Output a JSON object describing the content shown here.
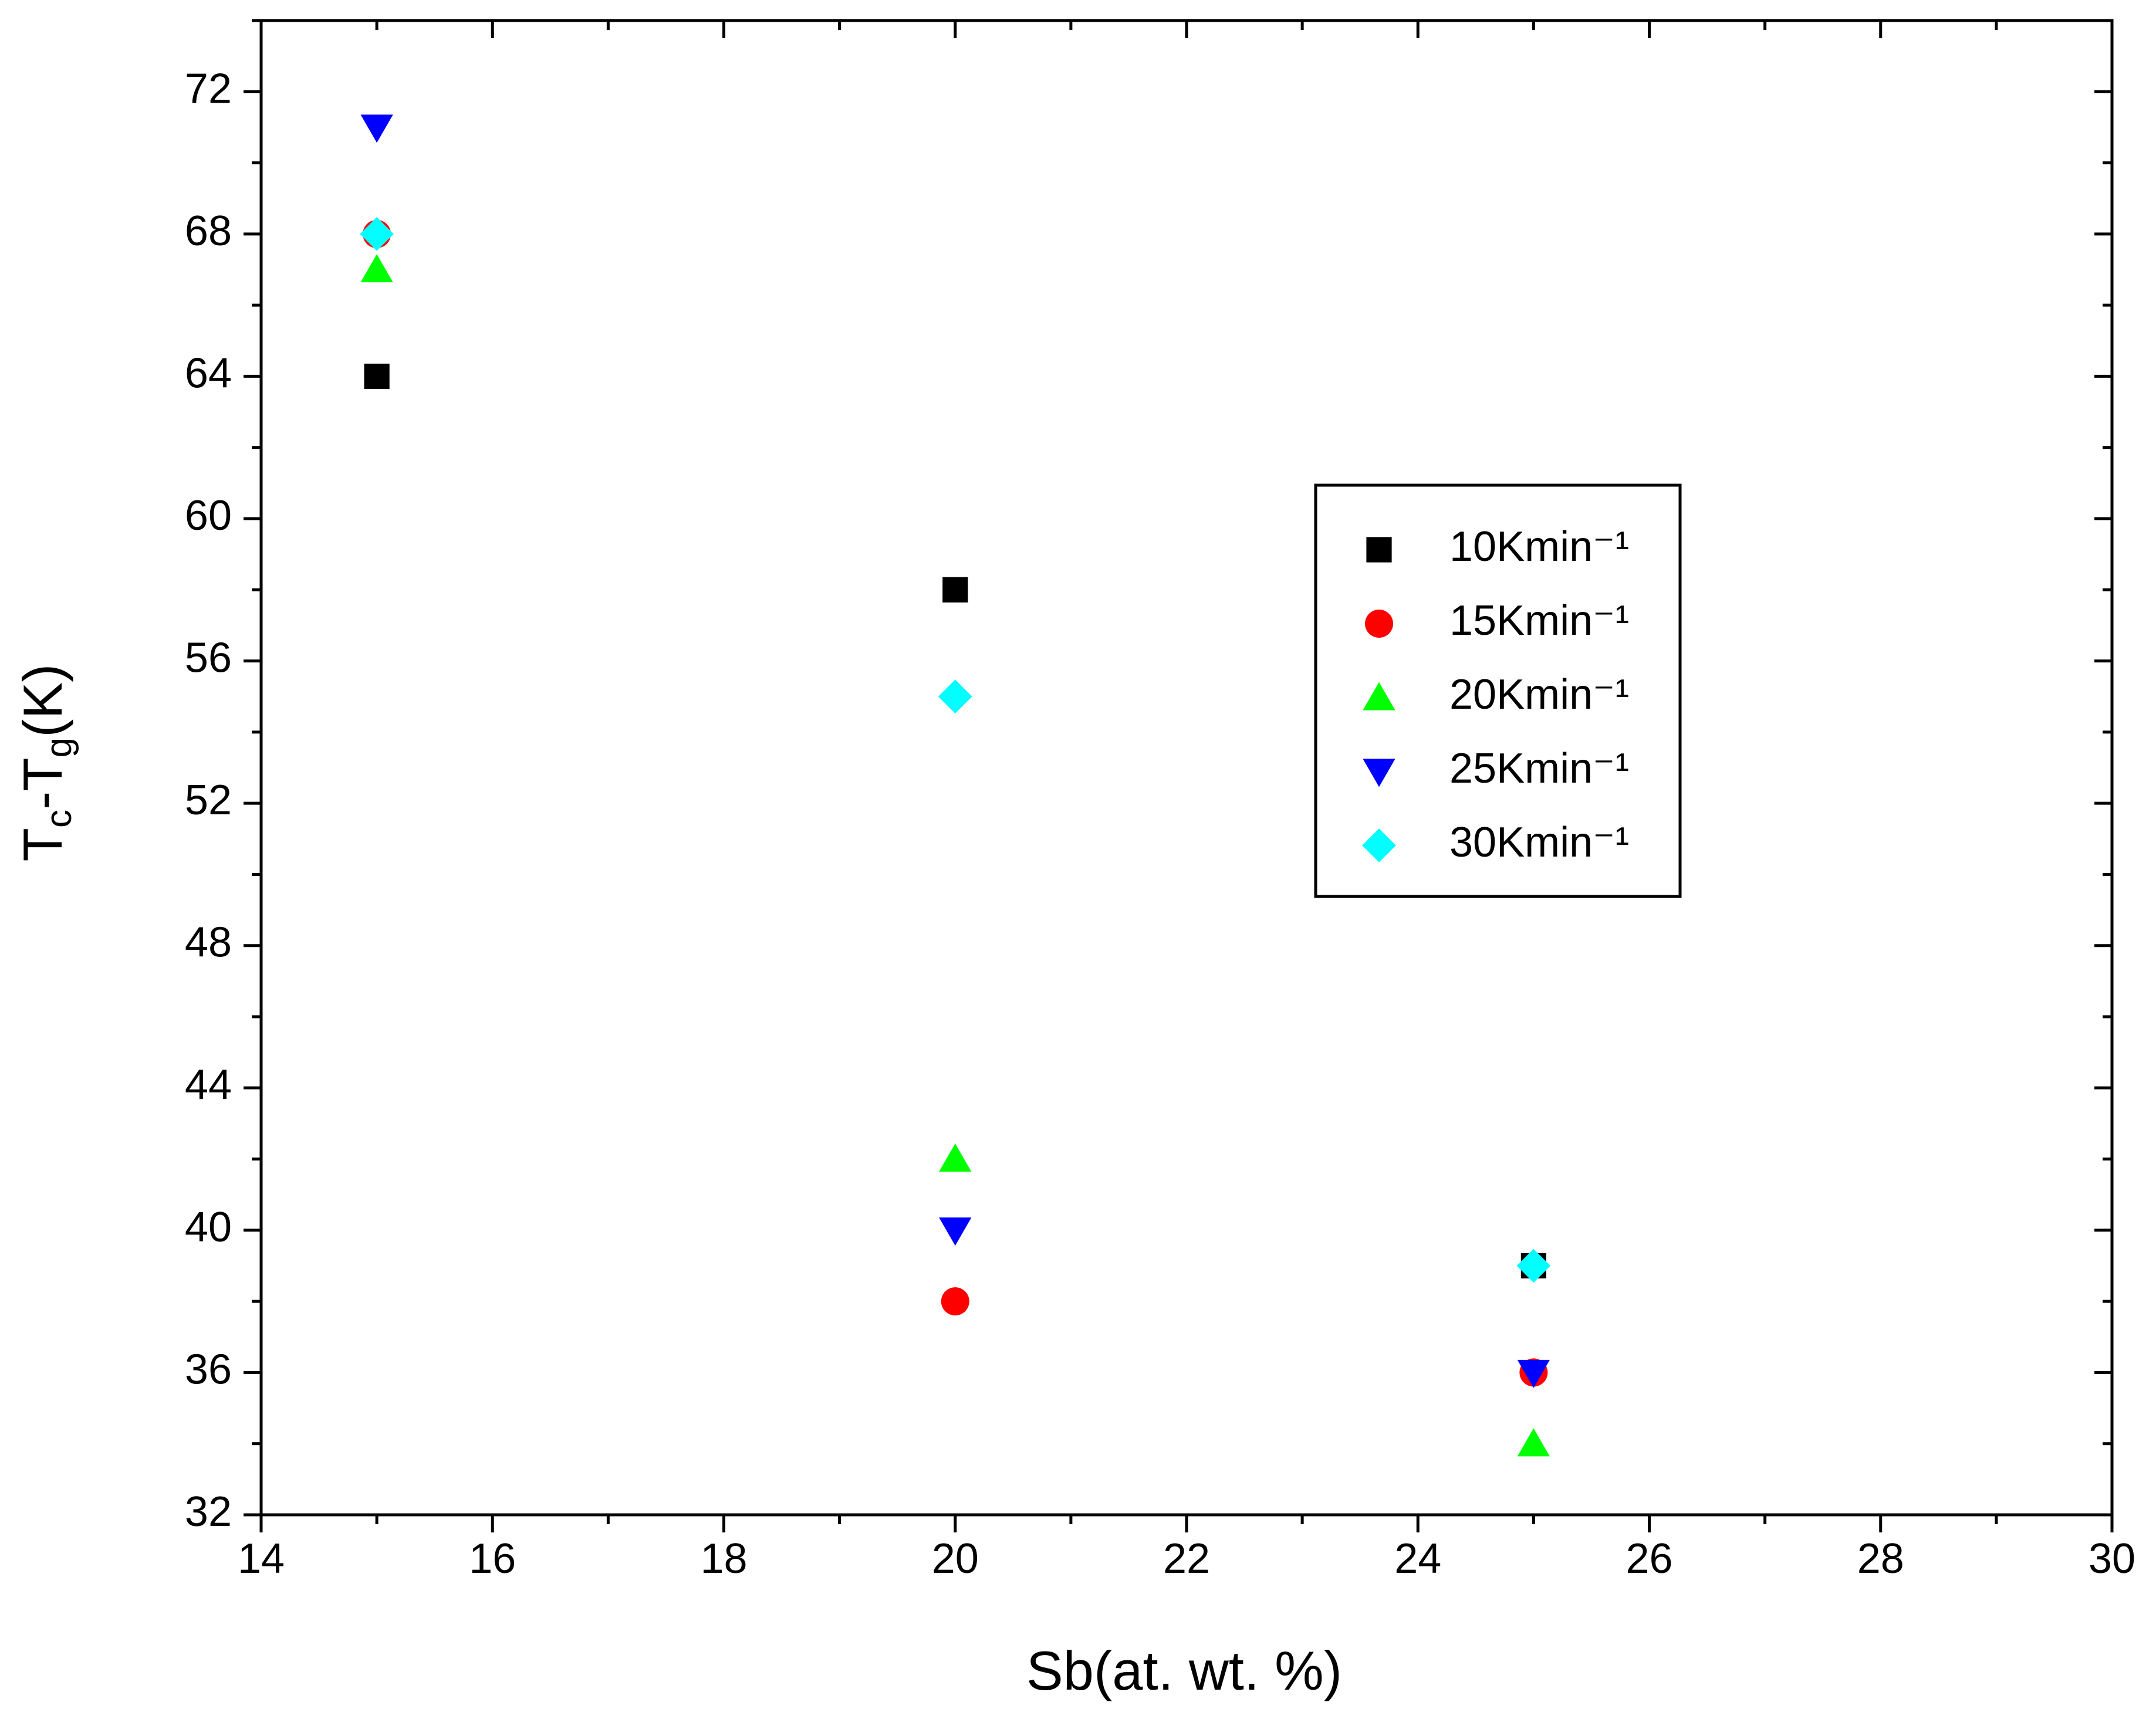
{
  "chart_data": {
    "type": "scatter",
    "x_label": "Sb(at. wt. %)",
    "y_label": [
      "T",
      "c",
      "-T",
      "g",
      "(K)"
    ],
    "x": [
      15,
      20,
      25
    ],
    "series": [
      {
        "name": "10Kmin⁻¹",
        "color": "#000000",
        "marker": "square",
        "values": [
          64,
          58,
          39
        ]
      },
      {
        "name": "15Kmin⁻¹",
        "color": "#ff0000",
        "marker": "circle",
        "values": [
          68,
          38,
          36
        ]
      },
      {
        "name": "20Kmin⁻¹",
        "color": "#00ff00",
        "marker": "triangle-up",
        "values": [
          67,
          42,
          34
        ]
      },
      {
        "name": "25Kmin⁻¹",
        "color": "#0000ff",
        "marker": "triangle-down",
        "values": [
          71,
          40,
          36
        ]
      },
      {
        "name": "30Kmin⁻¹",
        "color": "#00ffff",
        "marker": "diamond",
        "values": [
          68,
          55,
          39
        ]
      }
    ],
    "xlim": [
      14,
      30
    ],
    "xticks": [
      14,
      16,
      18,
      20,
      22,
      24,
      26,
      28,
      30
    ],
    "ylim": [
      32,
      74
    ],
    "yticks": [
      32,
      36,
      40,
      44,
      48,
      52,
      56,
      60,
      64,
      68,
      72
    ],
    "grid": false,
    "legend": "right"
  }
}
